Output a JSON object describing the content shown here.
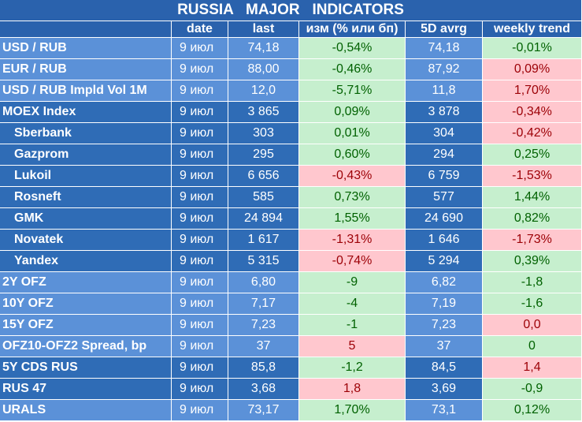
{
  "title": "RUSSIA   MAJOR   INDICATORS",
  "header": [
    "date",
    "last",
    "изм (% или бп)",
    "5D avrg",
    "weekly trend"
  ],
  "rows": [
    {
      "name": "USD / RUB",
      "date": "9 июл",
      "last": "74,18",
      "change": "-0,54%",
      "change_color": "green",
      "avg": "74,18",
      "weekly": "-0,01%",
      "weekly_color": "green",
      "group": "light",
      "indent": false
    },
    {
      "name": "EUR / RUB",
      "date": "9 июл",
      "last": "88,00",
      "change": "-0,46%",
      "change_color": "green",
      "avg": "87,92",
      "weekly": "0,09%",
      "weekly_color": "red",
      "group": "light",
      "indent": false
    },
    {
      "name": "USD / RUB Impld Vol 1M",
      "date": "9 июл",
      "last": "12,0",
      "change": "-5,71%",
      "change_color": "green",
      "avg": "11,8",
      "weekly": "1,70%",
      "weekly_color": "red",
      "group": "light",
      "indent": false
    },
    {
      "name": "MOEX Index",
      "date": "9 июл",
      "last": "3 865",
      "change": "0,09%",
      "change_color": "green",
      "avg": "3 878",
      "weekly": "-0,34%",
      "weekly_color": "red",
      "group": "dark",
      "indent": false
    },
    {
      "name": "Sberbank",
      "date": "9 июл",
      "last": "303",
      "change": "0,01%",
      "change_color": "green",
      "avg": "304",
      "weekly": "-0,42%",
      "weekly_color": "red",
      "group": "dark",
      "indent": true
    },
    {
      "name": "Gazprom",
      "date": "9 июл",
      "last": "295",
      "change": "0,60%",
      "change_color": "green",
      "avg": "294",
      "weekly": "0,25%",
      "weekly_color": "green",
      "group": "dark",
      "indent": true
    },
    {
      "name": "Lukoil",
      "date": "9 июл",
      "last": "6 656",
      "change": "-0,43%",
      "change_color": "red",
      "avg": "6 759",
      "weekly": "-1,53%",
      "weekly_color": "red",
      "group": "dark",
      "indent": true
    },
    {
      "name": "Rosneft",
      "date": "9 июл",
      "last": "585",
      "change": "0,73%",
      "change_color": "green",
      "avg": "577",
      "weekly": "1,44%",
      "weekly_color": "green",
      "group": "dark",
      "indent": true
    },
    {
      "name": "GMK",
      "date": "9 июл",
      "last": "24 894",
      "change": "1,55%",
      "change_color": "green",
      "avg": "24 690",
      "weekly": "0,82%",
      "weekly_color": "green",
      "group": "dark",
      "indent": true
    },
    {
      "name": "Novatek",
      "date": "9 июл",
      "last": "1 617",
      "change": "-1,31%",
      "change_color": "red",
      "avg": "1 646",
      "weekly": "-1,73%",
      "weekly_color": "red",
      "group": "dark",
      "indent": true
    },
    {
      "name": "Yandex",
      "date": "9 июл",
      "last": "5 315",
      "change": "-0,74%",
      "change_color": "red",
      "avg": "5 294",
      "weekly": "0,39%",
      "weekly_color": "green",
      "group": "dark",
      "indent": true
    },
    {
      "name": "2Y OFZ",
      "date": "9 июл",
      "last": "6,80",
      "change": "-9",
      "change_color": "green",
      "avg": "6,82",
      "weekly": "-1,8",
      "weekly_color": "green",
      "group": "light",
      "indent": false
    },
    {
      "name": "10Y OFZ",
      "date": "9 июл",
      "last": "7,17",
      "change": "-4",
      "change_color": "green",
      "avg": "7,19",
      "weekly": "-1,6",
      "weekly_color": "green",
      "group": "light",
      "indent": false
    },
    {
      "name": "15Y OFZ",
      "date": "9 июл",
      "last": "7,23",
      "change": "-1",
      "change_color": "green",
      "avg": "7,23",
      "weekly": "0,0",
      "weekly_color": "red",
      "group": "light",
      "indent": false
    },
    {
      "name": "OFZ10-OFZ2 Spread, bp",
      "date": "9 июл",
      "last": "37",
      "change": "5",
      "change_color": "red",
      "avg": "37",
      "weekly": "0",
      "weekly_color": "green",
      "group": "light",
      "indent": false
    },
    {
      "name": "5Y CDS RUS",
      "date": "9 июл",
      "last": "85,8",
      "change": "-1,2",
      "change_color": "green",
      "avg": "84,5",
      "weekly": "1,4",
      "weekly_color": "red",
      "group": "dark",
      "indent": false
    },
    {
      "name": "RUS 47",
      "date": "9 июл",
      "last": "3,68",
      "change": "1,8",
      "change_color": "red",
      "avg": "3,69",
      "weekly": "-0,9",
      "weekly_color": "green",
      "group": "dark",
      "indent": false
    },
    {
      "name": "URALS",
      "date": "9 июл",
      "last": "73,17",
      "change": "1,70%",
      "change_color": "green",
      "avg": "73,1",
      "weekly": "0,12%",
      "weekly_color": "green",
      "group": "light",
      "indent": false
    }
  ]
}
